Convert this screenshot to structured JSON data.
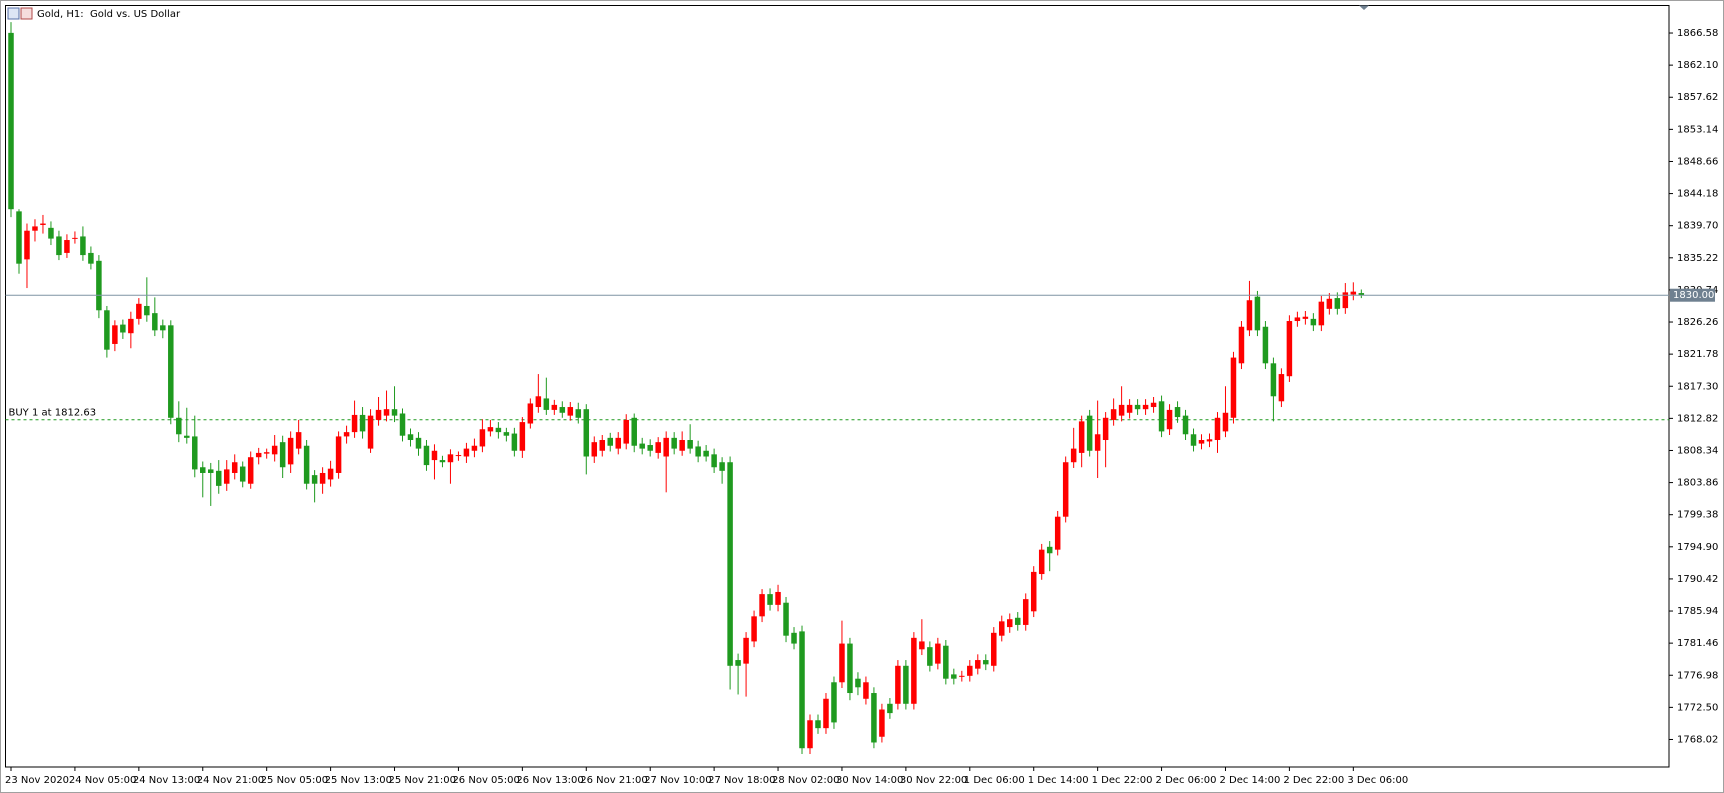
{
  "chart_data": {
    "type": "candlestick",
    "title": "Gold, H1:  Gold vs. US Dollar",
    "up_color": "#ff0000",
    "down_color": "#1f9a1f",
    "ylim": [
      1764.18,
      1870.42
    ],
    "yticks": [
      1866.58,
      {
        "value": 1862.1,
        "label": "1862.10"
      },
      1857.62,
      1853.14,
      1848.66,
      1844.18,
      {
        "value": 1839.7,
        "label": "1839.70"
      },
      1835.22,
      1830.74,
      1826.26,
      1821.78,
      {
        "value": 1817.3,
        "label": "1817.30"
      },
      1812.82,
      1808.34,
      1803.86,
      1799.38,
      {
        "value": 1794.9,
        "label": "1794.90"
      },
      1790.42,
      1785.94,
      1781.46,
      1776.98,
      {
        "value": 1772.5,
        "label": "1772.50"
      },
      1768.02
    ],
    "price_line": {
      "value": 1830,
      "label": "1830.00"
    },
    "order_line": {
      "value": 1812.63,
      "label": "BUY 1 at 1812.63"
    },
    "categories": [
      "23 Nov 2020",
      null,
      null,
      null,
      null,
      null,
      null,
      null,
      "24 Nov 05:00",
      null,
      null,
      null,
      null,
      null,
      null,
      null,
      "24 Nov 13:00",
      null,
      null,
      null,
      null,
      null,
      null,
      null,
      "24 Nov 21:00",
      null,
      null,
      null,
      null,
      null,
      null,
      null,
      "25 Nov 05:00",
      null,
      null,
      null,
      null,
      null,
      null,
      null,
      "25 Nov 13:00",
      null,
      null,
      null,
      null,
      null,
      null,
      null,
      "25 Nov 21:00",
      null,
      null,
      null,
      null,
      null,
      null,
      null,
      "26 Nov 05:00",
      null,
      null,
      null,
      null,
      null,
      null,
      null,
      "26 Nov 13:00",
      null,
      null,
      null,
      null,
      null,
      null,
      null,
      "26 Nov 21:00",
      null,
      null,
      null,
      null,
      null,
      null,
      null,
      "27 Nov 10:00",
      null,
      null,
      null,
      null,
      null,
      null,
      null,
      "27 Nov 18:00",
      null,
      null,
      null,
      null,
      null,
      null,
      null,
      "28 Nov 02:00",
      null,
      null,
      null,
      null,
      null,
      null,
      null,
      "30 Nov 14:00",
      null,
      null,
      null,
      null,
      null,
      null,
      null,
      "30 Nov 22:00",
      null,
      null,
      null,
      null,
      null,
      null,
      null,
      "1 Dec 06:00",
      null,
      null,
      null,
      null,
      null,
      null,
      null,
      "1 Dec 14:00",
      null,
      null,
      null,
      null,
      null,
      null,
      null,
      "1 Dec 22:00",
      null,
      null,
      null,
      null,
      null,
      null,
      null,
      "2 Dec 06:00",
      null,
      null,
      null,
      null,
      null,
      null,
      null,
      "2 Dec 14:00",
      null,
      null,
      null,
      null,
      null,
      null,
      null,
      "2 Dec 22:00",
      null,
      null,
      null,
      null,
      null,
      null,
      null,
      "3 Dec 06:00",
      null
    ],
    "open": [
      1866.6,
      1841.7,
      1835.0,
      1839.0,
      1839.8,
      1839.4,
      1838.2,
      1835.9,
      1837.9,
      1838.2,
      1835.9,
      1834.8,
      1827.9,
      1823.2,
      1825.9,
      1824.7,
      1826.7,
      1828.5,
      1827.5,
      1825.8,
      1825.8,
      1812.9,
      1810.4,
      1810.3,
      1806.0,
      1805.7,
      1805.5,
      1803.7,
      1805.2,
      1806.1,
      1803.7,
      1807.4,
      1807.9,
      1807.8,
      1809.5,
      1806.4,
      1808.6,
      1809.0,
      1804.9,
      1803.7,
      1804.3,
      1805.2,
      1810.3,
      1810.9,
      1813.3,
      1808.6,
      1812.6,
      1813.2,
      1814.1,
      1813.5,
      1810.6,
      1810.1,
      1809.0,
      1807.0,
      1807.0,
      1806.7,
      1807.6,
      1807.5,
      1808.3,
      1808.9,
      1811.0,
      1811.5,
      1810.9,
      1810.7,
      1808.3,
      1812.1,
      1814.4,
      1815.6,
      1814.0,
      1814.4,
      1813.2,
      1814.1,
      1814.1,
      1807.5,
      1808.3,
      1810.1,
      1808.6,
      1809.3,
      1812.9,
      1809.3,
      1809.1,
      1808.0,
      1807.5,
      1810.1,
      1808.3,
      1809.8,
      1808.9,
      1808.3,
      1807.8,
      1806.7,
      1806.7,
      1779.1,
      1778.6,
      1781.7,
      1785.2,
      1788.3,
      1786.8,
      1787.1,
      1782.9,
      1783.1,
      1766.8,
      1770.7,
      1769.6,
      1776.0,
      1776.0,
      1781.4,
      1776.5,
      1773.7,
      1774.5,
      1768.4,
      1773.0,
      1773.0,
      1778.3,
      1773.0,
      1780.6,
      1780.9,
      1778.6,
      1781.1,
      1777.1,
      1776.8,
      1776.9,
      1777.9,
      1779.1,
      1778.3,
      1782.5,
      1783.7,
      1785.0,
      1784.0,
      1785.9,
      1791.1,
      1794.9,
      1794.5,
      1799.1,
      1806.7,
      1808.0,
      1813.2,
      1808.3,
      1809.8,
      1812.6,
      1813.2,
      1813.6,
      1814.7,
      1814.1,
      1814.4,
      1815.2,
      1811.3,
      1814.4,
      1813.2,
      1810.6,
      1809.3,
      1809.6,
      1809.8,
      1811.0,
      1812.9,
      1820.5,
      1825.1,
      1829.8,
      1825.6,
      1820.5,
      1815.2,
      1818.7,
      1826.4,
      1826.7,
      1826.7,
      1825.8,
      1828.1,
      1829.6,
      1828.2,
      1830.1,
      1830.3
    ],
    "high": [
      1868.1,
      1842.0,
      1840.0,
      1840.6,
      1841.2,
      1840.3,
      1839.0,
      1838.5,
      1838.9,
      1839.6,
      1836.8,
      1835.6,
      1828.5,
      1826.5,
      1826.6,
      1827.7,
      1829.6,
      1832.5,
      1829.7,
      1826.6,
      1826.5,
      1815.2,
      1814.3,
      1813.2,
      1806.8,
      1806.6,
      1807.0,
      1807.0,
      1807.8,
      1806.8,
      1808.2,
      1808.7,
      1808.6,
      1810.5,
      1810.4,
      1811.0,
      1812.6,
      1809.8,
      1805.6,
      1806.0,
      1806.9,
      1811.0,
      1811.8,
      1815.3,
      1814.4,
      1814.1,
      1815.8,
      1816.7,
      1817.3,
      1814.2,
      1811.4,
      1810.9,
      1809.8,
      1809.2,
      1807.6,
      1808.5,
      1808.2,
      1809.4,
      1810.0,
      1812.7,
      1812.6,
      1812.3,
      1811.5,
      1811.5,
      1813.0,
      1815.6,
      1819.0,
      1818.5,
      1815.4,
      1815.2,
      1815.1,
      1815.0,
      1814.8,
      1810.3,
      1810.5,
      1810.8,
      1810.9,
      1813.4,
      1813.5,
      1810.1,
      1809.9,
      1810.2,
      1811.0,
      1810.9,
      1811.0,
      1812.0,
      1809.7,
      1809.1,
      1808.6,
      1807.4,
      1807.5,
      1780.0,
      1783.0,
      1786.0,
      1789.0,
      1789.1,
      1789.6,
      1787.9,
      1783.7,
      1783.9,
      1771.5,
      1771.5,
      1774.5,
      1776.8,
      1784.6,
      1782.2,
      1777.4,
      1776.8,
      1775.3,
      1773.0,
      1773.8,
      1779.1,
      1779.1,
      1783.0,
      1784.8,
      1781.7,
      1782.2,
      1781.9,
      1777.9,
      1777.6,
      1779.1,
      1779.9,
      1779.9,
      1783.7,
      1785.3,
      1785.6,
      1785.8,
      1788.4,
      1792.2,
      1795.3,
      1795.7,
      1799.9,
      1807.5,
      1811.5,
      1813.2,
      1814.0,
      1815.3,
      1813.7,
      1815.6,
      1817.3,
      1815.5,
      1815.5,
      1815.5,
      1815.8,
      1816.0,
      1814.8,
      1815.2,
      1814.0,
      1811.4,
      1810.6,
      1810.7,
      1813.7,
      1817.3,
      1822.1,
      1826.4,
      1832.0,
      1830.6,
      1826.4,
      1821.3,
      1819.8,
      1827.2,
      1827.7,
      1827.8,
      1827.5,
      1829.9,
      1830.3,
      1830.4,
      1831.7,
      1831.8,
      1830.8
    ],
    "low": [
      1840.9,
      1833.0,
      1831.0,
      1837.5,
      1838.6,
      1837.0,
      1834.9,
      1835.2,
      1837.2,
      1834.8,
      1833.6,
      1826.8,
      1821.3,
      1822.2,
      1823.9,
      1822.6,
      1825.9,
      1826.3,
      1824.3,
      1824.0,
      1812.0,
      1809.5,
      1809.3,
      1804.6,
      1801.8,
      1800.6,
      1802.3,
      1802.7,
      1804.3,
      1803.2,
      1803.0,
      1806.4,
      1807.2,
      1806.8,
      1804.5,
      1805.2,
      1807.8,
      1802.9,
      1801.1,
      1802.3,
      1803.3,
      1804.4,
      1809.3,
      1810.1,
      1810.0,
      1808.0,
      1811.8,
      1812.4,
      1812.3,
      1809.6,
      1808.9,
      1807.6,
      1805.5,
      1804.3,
      1806.0,
      1803.7,
      1806.9,
      1806.6,
      1807.4,
      1808.1,
      1810.3,
      1810.0,
      1809.6,
      1807.5,
      1807.3,
      1811.4,
      1813.6,
      1813.3,
      1813.3,
      1812.9,
      1812.5,
      1812.1,
      1805.0,
      1806.6,
      1807.5,
      1808.2,
      1807.8,
      1808.5,
      1808.1,
      1807.8,
      1807.5,
      1807.2,
      1802.5,
      1807.8,
      1807.6,
      1807.9,
      1806.7,
      1806.8,
      1805.2,
      1803.7,
      1775.0,
      1774.3,
      1774.0,
      1780.9,
      1784.4,
      1786.0,
      1785.9,
      1781.6,
      1780.6,
      1766.0,
      1766.0,
      1768.8,
      1768.8,
      1769.5,
      1775.2,
      1773.5,
      1774.2,
      1772.9,
      1766.8,
      1767.6,
      1770.9,
      1772.2,
      1772.2,
      1772.2,
      1779.8,
      1777.5,
      1777.8,
      1775.7,
      1775.7,
      1776.1,
      1776.1,
      1777.1,
      1777.7,
      1777.5,
      1781.7,
      1782.9,
      1783.2,
      1783.2,
      1785.1,
      1790.3,
      1791.5,
      1793.7,
      1798.3,
      1805.9,
      1806.0,
      1807.5,
      1804.5,
      1806.0,
      1811.8,
      1812.4,
      1812.8,
      1813.3,
      1813.3,
      1813.6,
      1810.2,
      1810.5,
      1812.2,
      1809.8,
      1808.2,
      1808.5,
      1808.8,
      1808.0,
      1810.2,
      1812.1,
      1819.7,
      1824.3,
      1824.3,
      1819.7,
      1812.4,
      1814.4,
      1817.9,
      1825.6,
      1825.9,
      1825.0,
      1825.0,
      1827.3,
      1827.3,
      1827.4,
      1829.3,
      1829.6
    ],
    "close": [
      1842.0,
      1834.4,
      1839.0,
      1839.6,
      1840.0,
      1837.9,
      1835.6,
      1837.7,
      1838.0,
      1835.6,
      1834.4,
      1827.9,
      1822.4,
      1825.8,
      1824.8,
      1826.7,
      1828.8,
      1827.2,
      1825.1,
      1825.1,
      1812.9,
      1810.6,
      1810.1,
      1805.7,
      1805.2,
      1805.2,
      1803.4,
      1805.7,
      1806.7,
      1804.0,
      1807.4,
      1808.0,
      1808.1,
      1809.0,
      1806.0,
      1810.1,
      1810.9,
      1803.7,
      1803.7,
      1805.2,
      1805.8,
      1810.3,
      1810.9,
      1813.3,
      1811.0,
      1813.2,
      1814.0,
      1814.1,
      1813.2,
      1810.4,
      1809.8,
      1808.6,
      1806.3,
      1808.3,
      1806.7,
      1807.8,
      1807.7,
      1808.6,
      1809.0,
      1811.3,
      1811.6,
      1810.9,
      1810.4,
      1808.3,
      1812.3,
      1814.9,
      1815.9,
      1814.0,
      1814.7,
      1813.6,
      1814.4,
      1812.9,
      1807.5,
      1809.5,
      1809.8,
      1809.0,
      1810.1,
      1812.6,
      1809.0,
      1808.6,
      1808.3,
      1809.5,
      1810.1,
      1808.6,
      1809.8,
      1808.6,
      1807.5,
      1807.5,
      1806.0,
      1805.5,
      1778.3,
      1778.3,
      1782.2,
      1785.2,
      1788.3,
      1786.8,
      1788.6,
      1782.5,
      1781.4,
      1766.8,
      1770.7,
      1769.6,
      1773.7,
      1770.4,
      1781.4,
      1774.5,
      1775.3,
      1776.0,
      1767.6,
      1772.2,
      1771.7,
      1778.3,
      1773.0,
      1782.2,
      1781.7,
      1778.3,
      1781.4,
      1776.5,
      1776.5,
      1776.9,
      1778.3,
      1779.1,
      1778.5,
      1782.9,
      1784.5,
      1784.8,
      1784.0,
      1787.6,
      1791.4,
      1794.5,
      1794.0,
      1799.1,
      1806.7,
      1808.6,
      1812.4,
      1808.3,
      1810.6,
      1812.9,
      1814.1,
      1814.7,
      1814.7,
      1814.1,
      1814.7,
      1815.0,
      1811.0,
      1814.0,
      1813.0,
      1810.6,
      1809.0,
      1809.8,
      1809.9,
      1812.9,
      1813.6,
      1821.3,
      1825.6,
      1829.3,
      1825.1,
      1820.5,
      1815.9,
      1819.0,
      1826.4,
      1826.9,
      1827.0,
      1825.8,
      1829.1,
      1829.5,
      1828.1,
      1830.4,
      1830.5,
      1830.0
    ]
  }
}
